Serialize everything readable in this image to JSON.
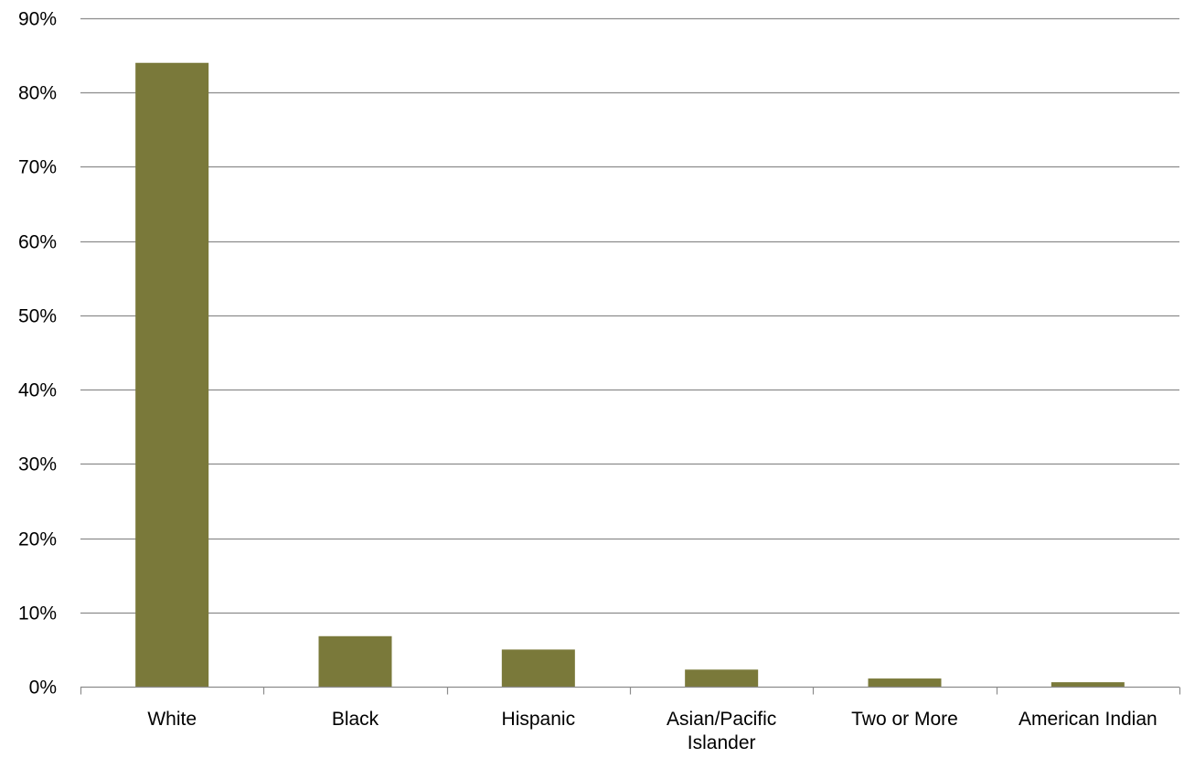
{
  "chart_data": {
    "type": "bar",
    "categories": [
      "White",
      "Black",
      "Hispanic",
      "Asian/Pacific Islander",
      "Two or More",
      "American Indian"
    ],
    "category_lines": [
      [
        "White"
      ],
      [
        "Black"
      ],
      [
        "Hispanic"
      ],
      [
        "Asian/Pacific",
        "Islander"
      ],
      [
        "Two or More"
      ],
      [
        "American Indian"
      ]
    ],
    "values": [
      84.0,
      6.8,
      5.0,
      2.3,
      1.1,
      0.6
    ],
    "ylim": [
      0,
      90
    ],
    "yticks": [
      0,
      10,
      20,
      30,
      40,
      50,
      60,
      70,
      80,
      90
    ],
    "ytick_labels": [
      "0%",
      "10%",
      "20%",
      "30%",
      "40%",
      "50%",
      "60%",
      "70%",
      "80%",
      "90%"
    ],
    "title": "",
    "xlabel": "",
    "ylabel": "",
    "grid": true,
    "bar_color": "#7a793a",
    "gridline_color": "#8c8c8c"
  }
}
